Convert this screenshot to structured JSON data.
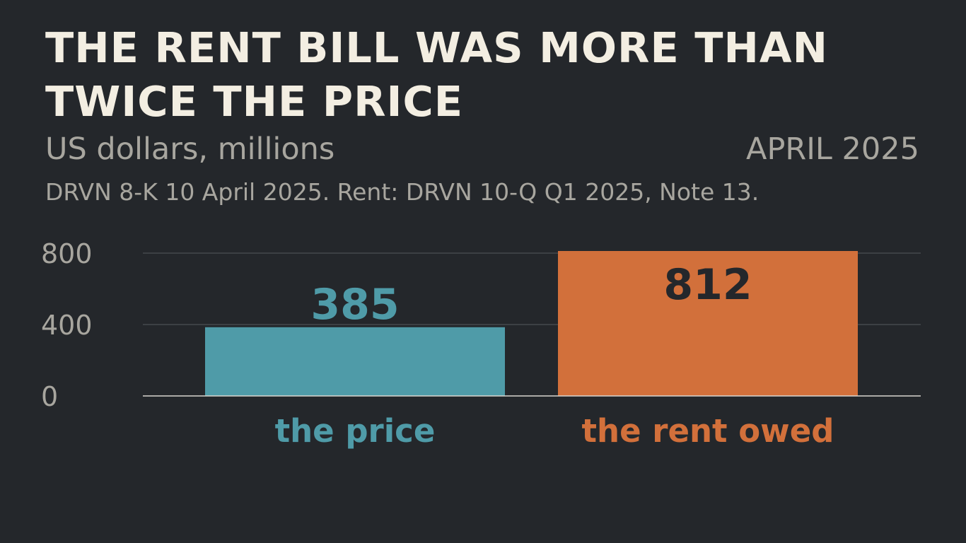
{
  "header": {
    "title": "THE RENT BILL WAS MORE THAN TWICE THE PRICE",
    "subtitle": "US dollars, millions",
    "date": "APRIL 2025",
    "source": "DRVN 8-K 10 April 2025. Rent: DRVN 10-Q Q1 2025, Note 13."
  },
  "chart_data": {
    "type": "bar",
    "title": "THE RENT BILL WAS MORE THAN TWICE THE PRICE",
    "ylabel": "US dollars, millions",
    "xlabel": "",
    "categories": [
      "the price",
      "the rent owed"
    ],
    "values": [
      385,
      812
    ],
    "value_labels": [
      "385",
      "812"
    ],
    "colors": [
      "#4f9ba8",
      "#d2703b"
    ],
    "value_label_colors": [
      "#4f9ba8",
      "#24272b"
    ],
    "ylim": [
      0,
      812
    ],
    "yticks": [
      0,
      400,
      800
    ],
    "ytick_labels": [
      "0",
      "400",
      "800"
    ],
    "grid": true,
    "legend": "none"
  },
  "theme": {
    "background": "#24272b",
    "grid_color": "#55585c",
    "baseline_color": "#d9d6cf",
    "tick_color": "#a8a69f"
  }
}
